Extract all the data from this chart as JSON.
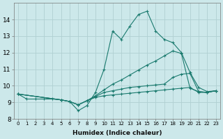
{
  "xlabel": "Humidex (Indice chaleur)",
  "bg_color": "#cce8ea",
  "grid_color": "#b0d0d2",
  "line_color": "#1a7a6e",
  "xlim": [
    -0.5,
    23.5
  ],
  "ylim": [
    8.0,
    15.0
  ],
  "xticks": [
    0,
    1,
    2,
    3,
    4,
    5,
    6,
    7,
    8,
    9,
    10,
    11,
    12,
    13,
    14,
    15,
    16,
    17,
    18,
    19,
    20,
    21,
    22,
    23
  ],
  "yticks": [
    8,
    9,
    10,
    11,
    12,
    13,
    14
  ],
  "lines": [
    {
      "x": [
        0,
        1,
        2,
        3,
        4,
        5,
        6,
        7,
        8,
        9,
        10,
        11,
        12,
        13,
        14,
        15,
        16,
        17,
        18,
        19,
        20,
        21,
        22,
        23
      ],
      "y": [
        9.5,
        9.2,
        9.2,
        9.2,
        9.2,
        9.15,
        9.05,
        8.5,
        8.8,
        9.6,
        11.0,
        13.3,
        12.8,
        13.6,
        14.3,
        14.5,
        13.3,
        12.8,
        12.6,
        12.0,
        10.8,
        9.9,
        9.65,
        9.7
      ]
    },
    {
      "x": [
        0,
        5,
        6,
        7,
        8,
        9,
        10,
        11,
        12,
        13,
        14,
        15,
        16,
        17,
        18,
        19,
        20,
        21,
        22,
        23
      ],
      "y": [
        9.5,
        9.15,
        9.05,
        8.85,
        9.1,
        9.4,
        9.75,
        10.1,
        10.35,
        10.65,
        10.95,
        11.25,
        11.5,
        11.8,
        12.1,
        11.95,
        9.85,
        9.65,
        9.6,
        9.7
      ]
    },
    {
      "x": [
        0,
        5,
        6,
        7,
        8,
        9,
        10,
        11,
        12,
        13,
        14,
        15,
        16,
        17,
        18,
        19,
        20,
        21,
        22,
        23
      ],
      "y": [
        9.5,
        9.15,
        9.05,
        8.85,
        9.1,
        9.35,
        9.6,
        9.7,
        9.8,
        9.9,
        9.95,
        10.0,
        10.05,
        10.1,
        10.5,
        10.7,
        10.75,
        9.65,
        9.6,
        9.7
      ]
    },
    {
      "x": [
        0,
        5,
        6,
        7,
        8,
        9,
        10,
        11,
        12,
        13,
        14,
        15,
        16,
        17,
        18,
        19,
        20,
        21,
        22,
        23
      ],
      "y": [
        9.5,
        9.15,
        9.05,
        8.85,
        9.1,
        9.3,
        9.4,
        9.45,
        9.5,
        9.55,
        9.6,
        9.65,
        9.7,
        9.75,
        9.8,
        9.85,
        9.9,
        9.6,
        9.6,
        9.7
      ]
    }
  ]
}
